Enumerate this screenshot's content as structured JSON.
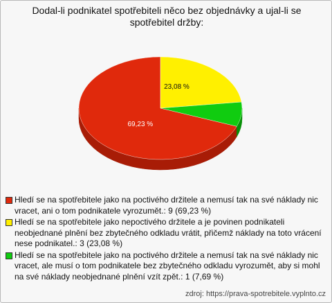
{
  "chart_data": {
    "type": "pie",
    "title": "Dodal-li podnikatel spotřebiteli něco bez objednávky a ujal-li se spotřebitel držby:",
    "categories": [
      "Hledí se na spotřebitele jako na poctivého držitele a nemusí tak na své náklady nic vracet, ani o tom podnikatele vyrozumět.: 9 (69,23 %)",
      "Hledí se na spotřebitele jako nepoctivého držitele a je povinen podnikateli neobjednané plnění bez zbytečného odkladu vrátit, přičemž náklady na toto vrácení nese podnikatel.: 3 (23,08 %)",
      "Hledí se na spotřebitele jako na poctivého držitele a nemusí tak na své náklady nic vracet, ale musí o tom podnikatele bez zbytečného odkladu vyrozumět, aby si mohl na své náklady neobjednané plnění vzít zpět.: 1 (7,69 %)"
    ],
    "values": [
      69.23,
      23.08,
      7.69
    ],
    "value_labels": [
      "69,23 %",
      "23,08 %",
      null
    ],
    "colors": [
      "#e0290c",
      "#fff000",
      "#10cc10"
    ],
    "side_colors": [
      "#a81c06",
      "#b8ad00",
      "#089008"
    ],
    "source": "zdroj: https://prava-spotrebitele.vyplnto.cz"
  }
}
